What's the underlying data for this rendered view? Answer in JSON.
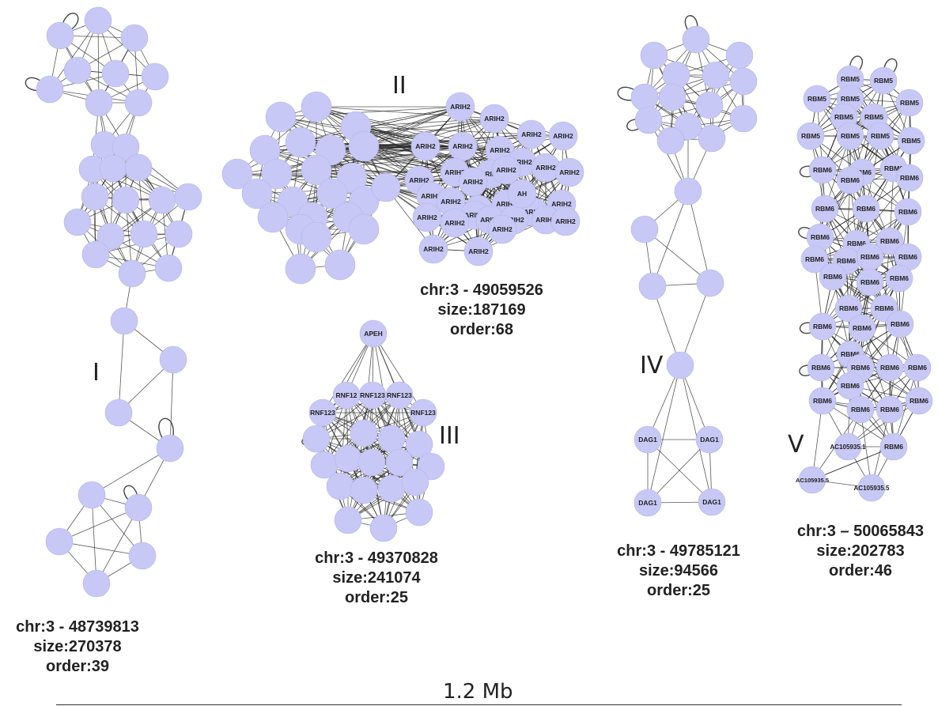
{
  "clusters": [
    {
      "roman": "I",
      "chr": "chr:3 - 48739813",
      "size": "size:270378",
      "order": "order:39"
    },
    {
      "roman": "II",
      "chr": "chr:3 - 49059526",
      "size": "size:187169",
      "order": "order:68"
    },
    {
      "roman": "III",
      "chr": "chr:3 - 49370828",
      "size": "size:241074",
      "order": "order:25"
    },
    {
      "roman": "IV",
      "chr": "chr:3 - 49785121",
      "size": "size:94566",
      "order": "order:25"
    },
    {
      "roman": "V",
      "chr": "chr:3 – 50065843",
      "size": "size:202783",
      "order": "order:46"
    }
  ],
  "node_labels": {
    "arih2": "ARIH2",
    "ah": "AH",
    "apeh": "APEH",
    "rnf123": "RNF123",
    "rnf12": "RNF12",
    "dag1": "DAG1",
    "rbm5": "RBM5",
    "rbm6": "RBM6",
    "ac105935_1": "AC105935.1",
    "ac105935_5": "AC105935.5"
  },
  "scale": {
    "label": "1.2 Mb"
  },
  "colors": {
    "node_fill": "#c7c8f5",
    "edge": "#222222"
  }
}
